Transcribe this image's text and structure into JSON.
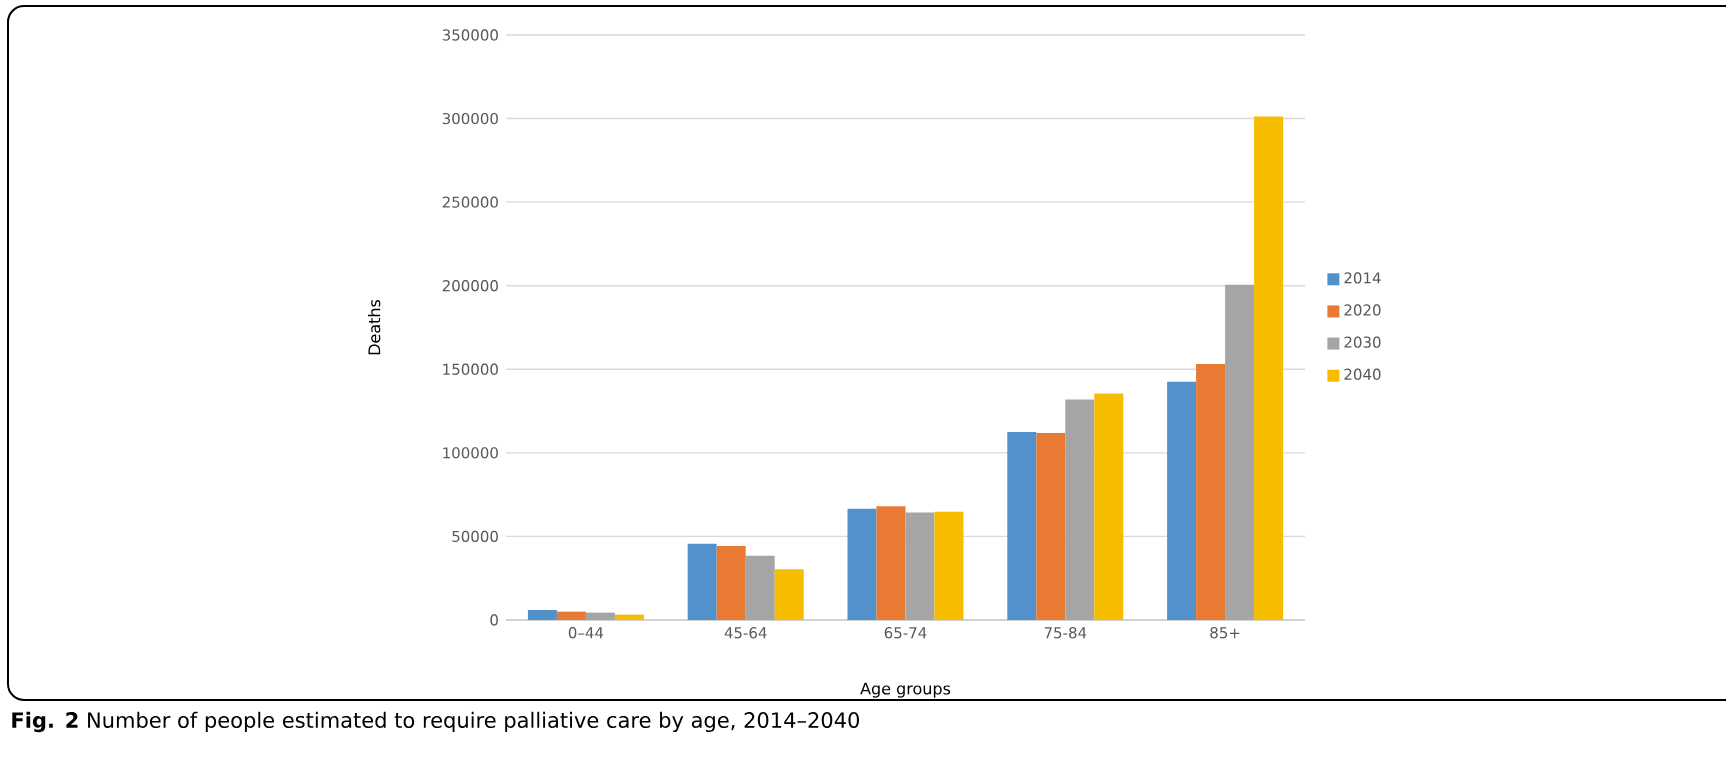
{
  "chart_data": {
    "type": "bar",
    "xlabel": "Age groups",
    "ylabel": "Deaths",
    "annotations": [
      "**Fig. 2** Number of people estimated to require palliative care by age, 2014–2040"
    ],
    "categories": [
      "0–44",
      "45-64",
      "65-74",
      "75-84",
      "85+"
    ],
    "series": [
      {
        "name": "2014",
        "color": "#5291cc",
        "values": [
          6000,
          45600,
          66600,
          112400,
          142600
        ]
      },
      {
        "name": "2020",
        "color": "#e87a33",
        "values": [
          5000,
          44200,
          68000,
          111800,
          153200
        ]
      },
      {
        "name": "2030",
        "color": "#a5a5a5",
        "values": [
          4400,
          38400,
          64300,
          131900,
          200600
        ]
      },
      {
        "name": "2040",
        "color": "#f6bd00",
        "values": [
          3200,
          30400,
          64700,
          135500,
          301300
        ]
      }
    ],
    "ylim": [
      0,
      350000
    ],
    "yticks": [
      0,
      50000,
      100000,
      150000,
      200000,
      250000,
      300000,
      350000
    ],
    "grid": "y",
    "legend": "right"
  }
}
